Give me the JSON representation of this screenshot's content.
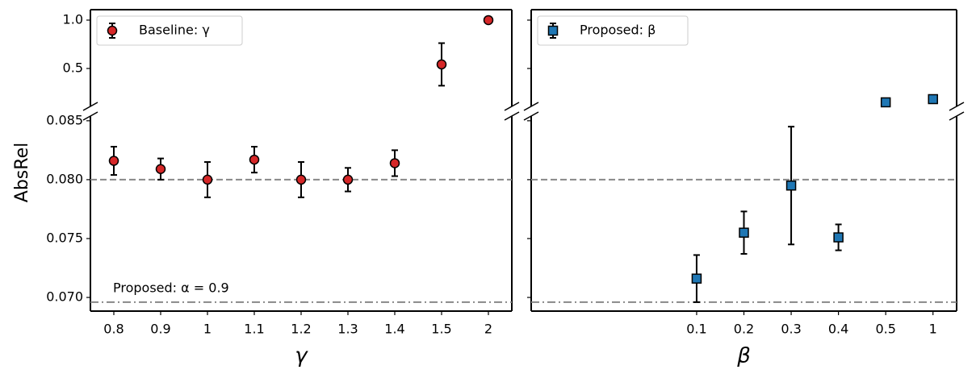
{
  "chart_data": {
    "type": "errorbar",
    "ylabel": "AbsRel",
    "grid": false,
    "y_segments": [
      {
        "ylim": [
          0.108,
          1.108
        ],
        "yticks": [
          {
            "value": 1,
            "label": "1.0"
          },
          0.5
        ]
      },
      {
        "ylim": [
          0.06884,
          0.0854
        ],
        "yticks": [
          0.085,
          {
            "value": 0.08,
            "label": "0.080"
          },
          0.075,
          {
            "value": 0.07,
            "label": "0.070"
          }
        ]
      }
    ],
    "hlines": [
      {
        "value": 0.08,
        "style": "dashed",
        "color": "#888888"
      },
      {
        "value": 0.0696,
        "style": "dashdot",
        "color": "#888888",
        "label": "Proposed: α = 0.9"
      }
    ],
    "panels": [
      {
        "xlabel": "γ",
        "legend": "upper left",
        "categories": [
          "0.8",
          "0.9",
          "1",
          "1.1",
          "1.2",
          "1.3",
          "1.4",
          "1.5",
          "2"
        ],
        "series": [
          {
            "name": "Baseline: γ",
            "color": "#d62728",
            "marker": "circle",
            "values": [
              0.0816,
              0.0809,
              0.08,
              0.0817,
              0.08,
              0.08,
              0.0814,
              0.542,
              1.0
            ],
            "errors": [
              0.0012,
              0.0009,
              0.0015,
              0.0011,
              0.0015,
              0.001,
              0.0011,
              0.22,
              0
            ]
          }
        ]
      },
      {
        "xlabel": "β",
        "legend": "upper left",
        "categories": [
          null,
          null,
          null,
          "0.1",
          "0.2",
          "0.3",
          "0.4",
          "0.5",
          "1"
        ],
        "series": [
          {
            "name": "Proposed: β",
            "color": "#1f77b4",
            "marker": "square",
            "values": [
              null,
              null,
              null,
              0.0716,
              0.0755,
              0.0795,
              0.0751,
              0.15,
              0.183
            ],
            "errors": [
              null,
              null,
              null,
              0.002,
              0.0018,
              0.005,
              0.0011,
              0.01,
              0.01
            ]
          }
        ]
      }
    ]
  }
}
